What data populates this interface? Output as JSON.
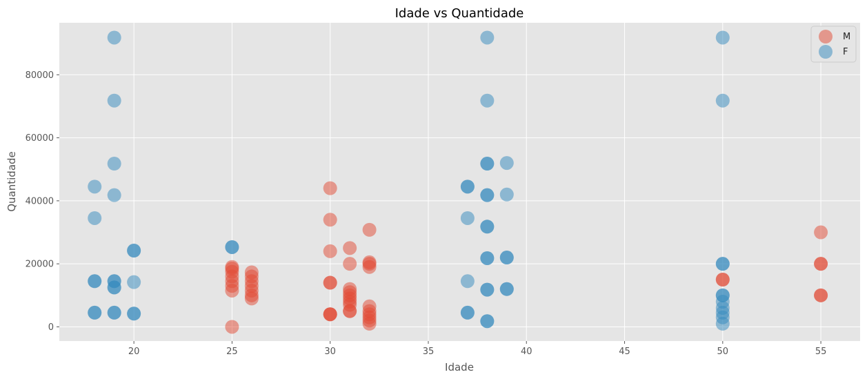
{
  "chart_data": {
    "type": "scatter",
    "title": "Idade vs Quantidade",
    "xlabel": "Idade",
    "ylabel": "Quantidade",
    "xlim": [
      16.2,
      57.0
    ],
    "ylim": [
      -4500,
      96500
    ],
    "xticks": [
      20,
      25,
      30,
      35,
      40,
      45,
      50,
      55
    ],
    "yticks": [
      0,
      20000,
      40000,
      60000,
      80000
    ],
    "xtick_labels": [
      "20",
      "25",
      "30",
      "35",
      "40",
      "45",
      "50",
      "55"
    ],
    "ytick_labels": [
      "0",
      "20000",
      "40000",
      "60000",
      "80000"
    ],
    "grid": true,
    "legend_position": "top-right",
    "background": "#e5e5e5",
    "series": [
      {
        "name": "M",
        "color": "#e24a33",
        "alpha": 0.5,
        "points": [
          [
            25,
            0
          ],
          [
            25,
            11500
          ],
          [
            25,
            13000
          ],
          [
            25,
            14500
          ],
          [
            25,
            16000
          ],
          [
            25,
            17500
          ],
          [
            25,
            19000
          ],
          [
            25,
            18500
          ],
          [
            26,
            9000
          ],
          [
            26,
            10000
          ],
          [
            26,
            11500
          ],
          [
            26,
            13000
          ],
          [
            26,
            14500
          ],
          [
            26,
            16000
          ],
          [
            26,
            17300
          ],
          [
            30,
            44000
          ],
          [
            30,
            34000
          ],
          [
            30,
            24000
          ],
          [
            30,
            14000
          ],
          [
            30,
            14000
          ],
          [
            30,
            4000
          ],
          [
            30,
            4000
          ],
          [
            30,
            4000
          ],
          [
            31,
            25000
          ],
          [
            31,
            20000
          ],
          [
            31,
            12000
          ],
          [
            31,
            11000
          ],
          [
            31,
            10000
          ],
          [
            31,
            9000
          ],
          [
            31,
            8000
          ],
          [
            31,
            7000
          ],
          [
            31,
            5000
          ],
          [
            31,
            5000
          ],
          [
            32,
            30800
          ],
          [
            32,
            20500
          ],
          [
            32,
            20000
          ],
          [
            32,
            19000
          ],
          [
            32,
            6500
          ],
          [
            32,
            5000
          ],
          [
            32,
            4000
          ],
          [
            32,
            3000
          ],
          [
            32,
            2000
          ],
          [
            32,
            1000
          ],
          [
            50,
            15000
          ],
          [
            50,
            15000
          ],
          [
            55,
            30000
          ],
          [
            55,
            20000
          ],
          [
            55,
            20000
          ],
          [
            55,
            10000
          ],
          [
            55,
            10000
          ]
        ]
      },
      {
        "name": "F",
        "color": "#348abd",
        "alpha": 0.5,
        "points": [
          [
            18,
            44500
          ],
          [
            18,
            34500
          ],
          [
            18,
            14500
          ],
          [
            18,
            14500
          ],
          [
            18,
            4500
          ],
          [
            18,
            4500
          ],
          [
            19,
            91800
          ],
          [
            19,
            71800
          ],
          [
            19,
            51800
          ],
          [
            19,
            41800
          ],
          [
            19,
            14500
          ],
          [
            19,
            14500
          ],
          [
            19,
            12500
          ],
          [
            19,
            12500
          ],
          [
            19,
            4500
          ],
          [
            19,
            4500
          ],
          [
            20,
            24200
          ],
          [
            20,
            24200
          ],
          [
            20,
            14200
          ],
          [
            20,
            4200
          ],
          [
            20,
            4200
          ],
          [
            25,
            25300
          ],
          [
            25,
            25300
          ],
          [
            37,
            44500
          ],
          [
            37,
            44500
          ],
          [
            37,
            34500
          ],
          [
            37,
            14500
          ],
          [
            37,
            4500
          ],
          [
            37,
            4500
          ],
          [
            38,
            91800
          ],
          [
            38,
            71800
          ],
          [
            38,
            51800
          ],
          [
            38,
            51800
          ],
          [
            38,
            41800
          ],
          [
            38,
            41800
          ],
          [
            38,
            31800
          ],
          [
            38,
            31800
          ],
          [
            38,
            21800
          ],
          [
            38,
            21800
          ],
          [
            38,
            11800
          ],
          [
            38,
            11800
          ],
          [
            38,
            1800
          ],
          [
            38,
            1800
          ],
          [
            39,
            52000
          ],
          [
            39,
            42000
          ],
          [
            39,
            22000
          ],
          [
            39,
            22000
          ],
          [
            39,
            12000
          ],
          [
            39,
            12000
          ],
          [
            50,
            91800
          ],
          [
            50,
            71800
          ],
          [
            50,
            20000
          ],
          [
            50,
            20000
          ],
          [
            50,
            10000
          ],
          [
            50,
            10000
          ],
          [
            50,
            8000
          ],
          [
            50,
            6000
          ],
          [
            50,
            4500
          ],
          [
            50,
            3000
          ],
          [
            50,
            1000
          ]
        ]
      }
    ]
  }
}
